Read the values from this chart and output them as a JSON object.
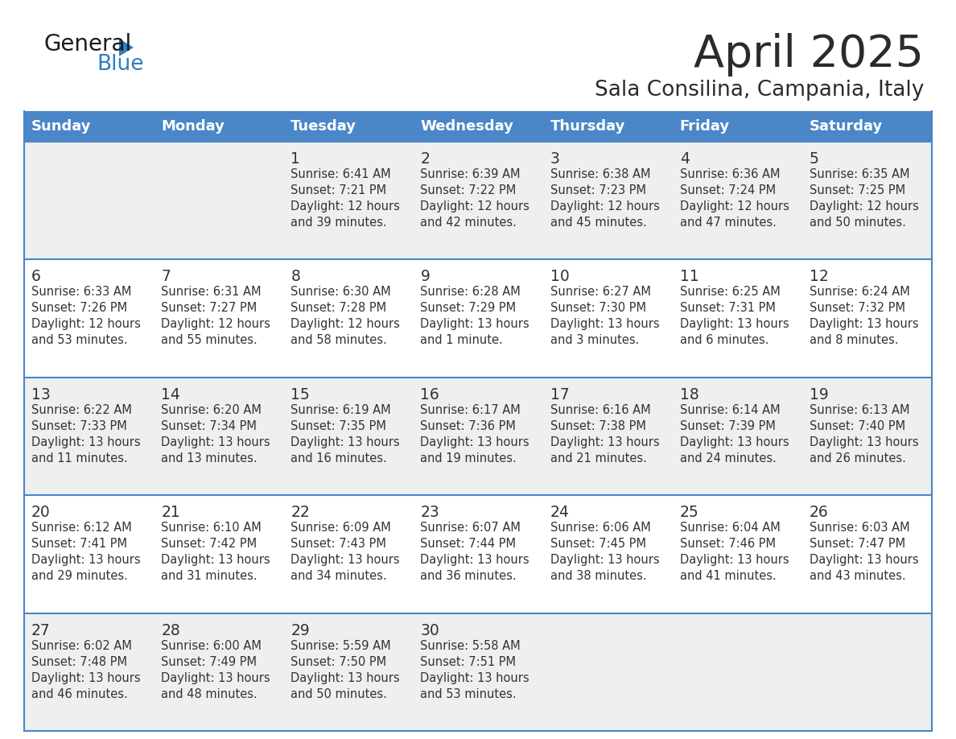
{
  "title": "April 2025",
  "subtitle": "Sala Consilina, Campania, Italy",
  "days_of_week": [
    "Sunday",
    "Monday",
    "Tuesday",
    "Wednesday",
    "Thursday",
    "Friday",
    "Saturday"
  ],
  "header_bg": "#4A86C8",
  "header_text_color": "#FFFFFF",
  "row_line_color": "#4A86C8",
  "text_color": "#333333",
  "title_color": "#2B2B2B",
  "logo_general_color": "#1A1A1A",
  "logo_blue_color": "#2E7EC1",
  "row_bg_colors": [
    "#EFEFEF",
    "#FFFFFF",
    "#EFEFEF",
    "#FFFFFF",
    "#EFEFEF"
  ],
  "weeks": [
    [
      {
        "day": "",
        "sunrise": "",
        "sunset": "",
        "daylight": ""
      },
      {
        "day": "",
        "sunrise": "",
        "sunset": "",
        "daylight": ""
      },
      {
        "day": "1",
        "sunrise": "Sunrise: 6:41 AM",
        "sunset": "Sunset: 7:21 PM",
        "daylight": "Daylight: 12 hours\nand 39 minutes."
      },
      {
        "day": "2",
        "sunrise": "Sunrise: 6:39 AM",
        "sunset": "Sunset: 7:22 PM",
        "daylight": "Daylight: 12 hours\nand 42 minutes."
      },
      {
        "day": "3",
        "sunrise": "Sunrise: 6:38 AM",
        "sunset": "Sunset: 7:23 PM",
        "daylight": "Daylight: 12 hours\nand 45 minutes."
      },
      {
        "day": "4",
        "sunrise": "Sunrise: 6:36 AM",
        "sunset": "Sunset: 7:24 PM",
        "daylight": "Daylight: 12 hours\nand 47 minutes."
      },
      {
        "day": "5",
        "sunrise": "Sunrise: 6:35 AM",
        "sunset": "Sunset: 7:25 PM",
        "daylight": "Daylight: 12 hours\nand 50 minutes."
      }
    ],
    [
      {
        "day": "6",
        "sunrise": "Sunrise: 6:33 AM",
        "sunset": "Sunset: 7:26 PM",
        "daylight": "Daylight: 12 hours\nand 53 minutes."
      },
      {
        "day": "7",
        "sunrise": "Sunrise: 6:31 AM",
        "sunset": "Sunset: 7:27 PM",
        "daylight": "Daylight: 12 hours\nand 55 minutes."
      },
      {
        "day": "8",
        "sunrise": "Sunrise: 6:30 AM",
        "sunset": "Sunset: 7:28 PM",
        "daylight": "Daylight: 12 hours\nand 58 minutes."
      },
      {
        "day": "9",
        "sunrise": "Sunrise: 6:28 AM",
        "sunset": "Sunset: 7:29 PM",
        "daylight": "Daylight: 13 hours\nand 1 minute."
      },
      {
        "day": "10",
        "sunrise": "Sunrise: 6:27 AM",
        "sunset": "Sunset: 7:30 PM",
        "daylight": "Daylight: 13 hours\nand 3 minutes."
      },
      {
        "day": "11",
        "sunrise": "Sunrise: 6:25 AM",
        "sunset": "Sunset: 7:31 PM",
        "daylight": "Daylight: 13 hours\nand 6 minutes."
      },
      {
        "day": "12",
        "sunrise": "Sunrise: 6:24 AM",
        "sunset": "Sunset: 7:32 PM",
        "daylight": "Daylight: 13 hours\nand 8 minutes."
      }
    ],
    [
      {
        "day": "13",
        "sunrise": "Sunrise: 6:22 AM",
        "sunset": "Sunset: 7:33 PM",
        "daylight": "Daylight: 13 hours\nand 11 minutes."
      },
      {
        "day": "14",
        "sunrise": "Sunrise: 6:20 AM",
        "sunset": "Sunset: 7:34 PM",
        "daylight": "Daylight: 13 hours\nand 13 minutes."
      },
      {
        "day": "15",
        "sunrise": "Sunrise: 6:19 AM",
        "sunset": "Sunset: 7:35 PM",
        "daylight": "Daylight: 13 hours\nand 16 minutes."
      },
      {
        "day": "16",
        "sunrise": "Sunrise: 6:17 AM",
        "sunset": "Sunset: 7:36 PM",
        "daylight": "Daylight: 13 hours\nand 19 minutes."
      },
      {
        "day": "17",
        "sunrise": "Sunrise: 6:16 AM",
        "sunset": "Sunset: 7:38 PM",
        "daylight": "Daylight: 13 hours\nand 21 minutes."
      },
      {
        "day": "18",
        "sunrise": "Sunrise: 6:14 AM",
        "sunset": "Sunset: 7:39 PM",
        "daylight": "Daylight: 13 hours\nand 24 minutes."
      },
      {
        "day": "19",
        "sunrise": "Sunrise: 6:13 AM",
        "sunset": "Sunset: 7:40 PM",
        "daylight": "Daylight: 13 hours\nand 26 minutes."
      }
    ],
    [
      {
        "day": "20",
        "sunrise": "Sunrise: 6:12 AM",
        "sunset": "Sunset: 7:41 PM",
        "daylight": "Daylight: 13 hours\nand 29 minutes."
      },
      {
        "day": "21",
        "sunrise": "Sunrise: 6:10 AM",
        "sunset": "Sunset: 7:42 PM",
        "daylight": "Daylight: 13 hours\nand 31 minutes."
      },
      {
        "day": "22",
        "sunrise": "Sunrise: 6:09 AM",
        "sunset": "Sunset: 7:43 PM",
        "daylight": "Daylight: 13 hours\nand 34 minutes."
      },
      {
        "day": "23",
        "sunrise": "Sunrise: 6:07 AM",
        "sunset": "Sunset: 7:44 PM",
        "daylight": "Daylight: 13 hours\nand 36 minutes."
      },
      {
        "day": "24",
        "sunrise": "Sunrise: 6:06 AM",
        "sunset": "Sunset: 7:45 PM",
        "daylight": "Daylight: 13 hours\nand 38 minutes."
      },
      {
        "day": "25",
        "sunrise": "Sunrise: 6:04 AM",
        "sunset": "Sunset: 7:46 PM",
        "daylight": "Daylight: 13 hours\nand 41 minutes."
      },
      {
        "day": "26",
        "sunrise": "Sunrise: 6:03 AM",
        "sunset": "Sunset: 7:47 PM",
        "daylight": "Daylight: 13 hours\nand 43 minutes."
      }
    ],
    [
      {
        "day": "27",
        "sunrise": "Sunrise: 6:02 AM",
        "sunset": "Sunset: 7:48 PM",
        "daylight": "Daylight: 13 hours\nand 46 minutes."
      },
      {
        "day": "28",
        "sunrise": "Sunrise: 6:00 AM",
        "sunset": "Sunset: 7:49 PM",
        "daylight": "Daylight: 13 hours\nand 48 minutes."
      },
      {
        "day": "29",
        "sunrise": "Sunrise: 5:59 AM",
        "sunset": "Sunset: 7:50 PM",
        "daylight": "Daylight: 13 hours\nand 50 minutes."
      },
      {
        "day": "30",
        "sunrise": "Sunrise: 5:58 AM",
        "sunset": "Sunset: 7:51 PM",
        "daylight": "Daylight: 13 hours\nand 53 minutes."
      },
      {
        "day": "",
        "sunrise": "",
        "sunset": "",
        "daylight": ""
      },
      {
        "day": "",
        "sunrise": "",
        "sunset": "",
        "daylight": ""
      },
      {
        "day": "",
        "sunrise": "",
        "sunset": "",
        "daylight": ""
      }
    ]
  ]
}
